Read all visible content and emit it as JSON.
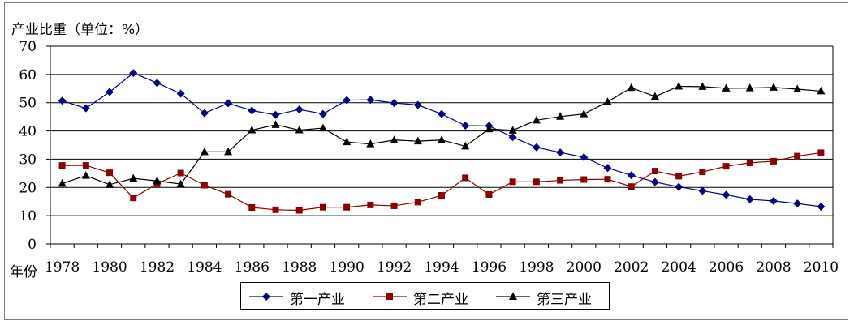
{
  "chart_data": {
    "type": "line",
    "ylabel": "产业比重（单位：%）",
    "xlabel": "年份",
    "ylim": [
      0,
      70
    ],
    "yticks": [
      0,
      10,
      20,
      30,
      40,
      50,
      60,
      70
    ],
    "xtick_labels": [
      "1978",
      "1980",
      "1982",
      "1984",
      "1986",
      "1988",
      "1990",
      "1992",
      "1994",
      "1996",
      "1998",
      "2000",
      "2002",
      "2004",
      "2006",
      "2008",
      "2010"
    ],
    "x": [
      "1978",
      "1979",
      "1980",
      "1981",
      "1982",
      "1983",
      "1984",
      "1985",
      "1986",
      "1987",
      "1988",
      "1989",
      "1990",
      "1991",
      "1992",
      "1993",
      "1994",
      "1995",
      "1996",
      "1997",
      "1998",
      "1999",
      "2000",
      "2001",
      "2002",
      "2003",
      "2004",
      "2005",
      "2006",
      "2007",
      "2008",
      "2009",
      "2010"
    ],
    "grid": "horizontal",
    "legend_position": "bottom",
    "series": [
      {
        "name": "第一产业",
        "color": "#000080",
        "marker": "diamond",
        "values": [
          50.7,
          48.0,
          53.8,
          60.5,
          57.0,
          53.2,
          46.3,
          49.8,
          47.2,
          45.7,
          47.6,
          46.0,
          50.9,
          51.0,
          49.9,
          49.2,
          46.0,
          41.9,
          41.8,
          37.8,
          34.2,
          32.4,
          30.7,
          26.9,
          24.3,
          21.9,
          20.2,
          18.8,
          17.4,
          15.8,
          15.2,
          14.3,
          13.2
        ]
      },
      {
        "name": "第二产业",
        "color": "#8b0000",
        "marker": "square",
        "values": [
          27.8,
          27.8,
          25.2,
          16.3,
          21.3,
          25.1,
          20.8,
          17.6,
          12.9,
          12.1,
          11.9,
          13.0,
          13.0,
          13.8,
          13.5,
          14.8,
          17.2,
          23.4,
          17.5,
          22.0,
          22.0,
          22.5,
          22.8,
          22.9,
          20.3,
          25.8,
          24.0,
          25.5,
          27.5,
          28.7,
          29.3,
          31.1,
          32.3
        ]
      },
      {
        "name": "第三产业",
        "color": "#000000",
        "marker": "triangle",
        "values": [
          21.4,
          24.2,
          21.0,
          23.2,
          22.3,
          21.2,
          32.6,
          32.6,
          40.3,
          42.2,
          40.3,
          41.0,
          36.1,
          35.4,
          36.8,
          36.4,
          36.8,
          34.6,
          40.7,
          40.2,
          43.8,
          45.1,
          46.0,
          50.3,
          55.3,
          52.2,
          55.8,
          55.7,
          55.1,
          55.2,
          55.4,
          54.8,
          54.1
        ]
      }
    ]
  }
}
